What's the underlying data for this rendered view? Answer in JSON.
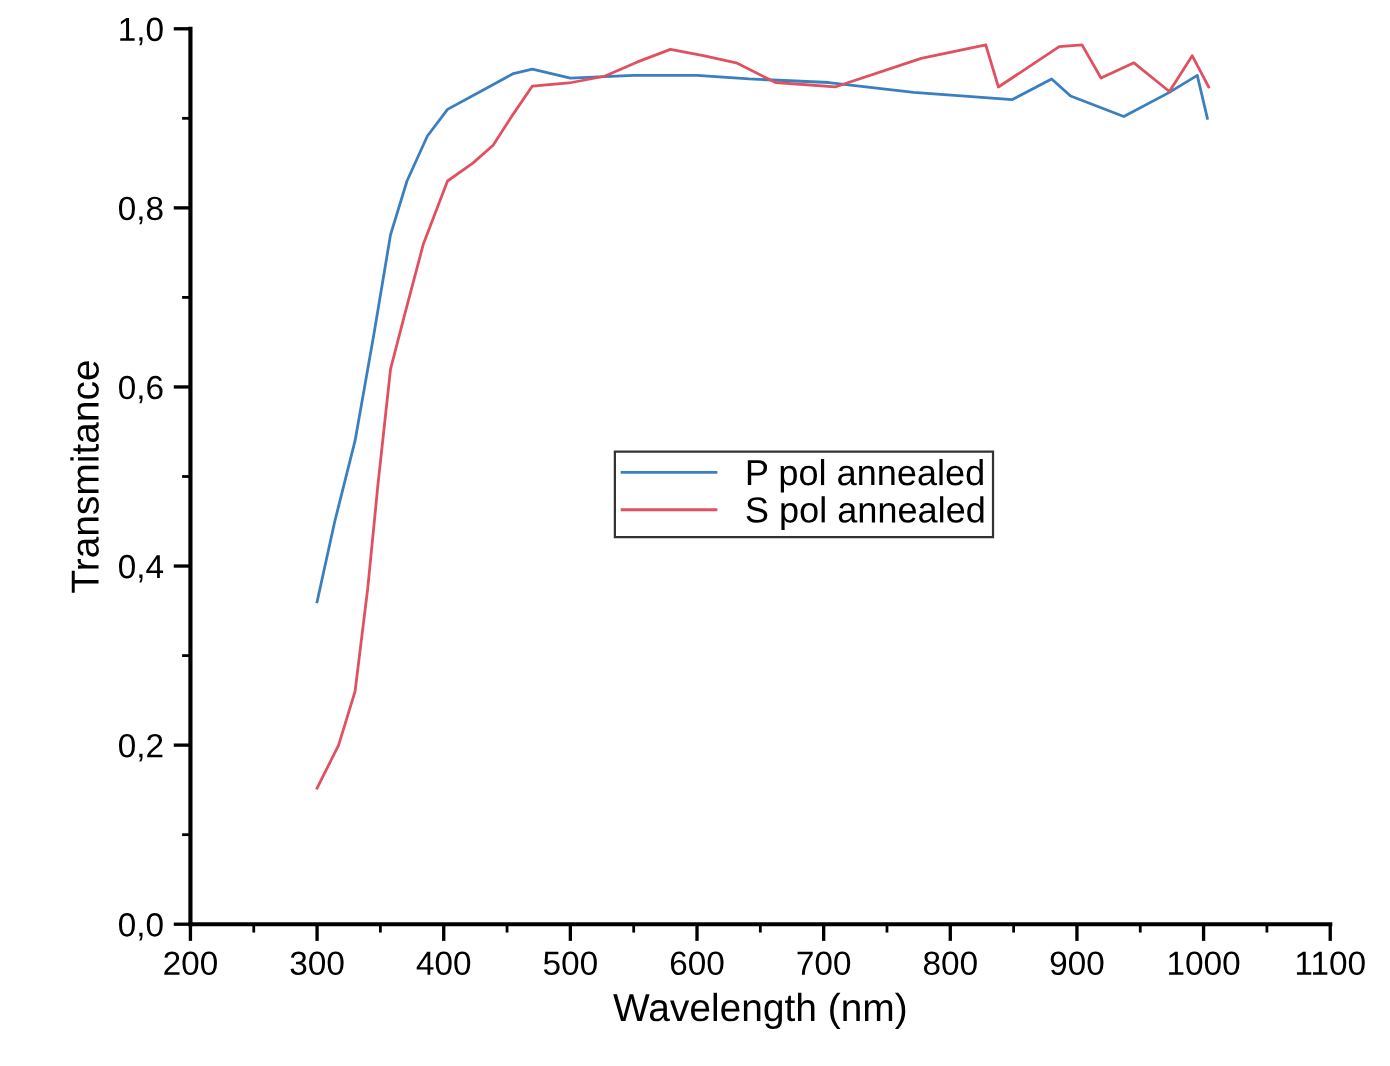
{
  "chart_data": {
    "type": "line",
    "xlabel": "Wavelength (nm)",
    "ylabel": "Transmitance",
    "xlim": [
      200,
      1100
    ],
    "xticks": [
      200,
      300,
      400,
      500,
      600,
      700,
      800,
      900,
      1000,
      1100
    ],
    "ylim": [
      0,
      1.0
    ],
    "yticks": [
      {
        "value": 0,
        "label": "0,0"
      },
      {
        "value": 0.2,
        "label": "0,2"
      },
      {
        "value": 0.4,
        "label": "0,4"
      },
      {
        "value": 0.6,
        "label": "0,6"
      },
      {
        "value": 0.8,
        "label": "0,8"
      },
      {
        "value": 1.0,
        "label": "1,0"
      }
    ],
    "grid": false,
    "legend": "right",
    "marker": "none",
    "line_style": "solid",
    "series": [
      {
        "name": "P pol annealed",
        "color": "#3a7fc0",
        "x": [
          300,
          314,
          330,
          345,
          358,
          371,
          387,
          403,
          429,
          455,
          470,
          500,
          550,
          600,
          641,
          704,
          771,
          849,
          880,
          895,
          937,
          973,
          995,
          1003
        ],
        "values": [
          0.36,
          0.45,
          0.54,
          0.66,
          0.77,
          0.83,
          0.88,
          0.91,
          0.93,
          0.95,
          0.955,
          0.945,
          0.948,
          0.948,
          0.944,
          0.94,
          0.929,
          0.921,
          0.944,
          0.925,
          0.902,
          0.929,
          0.948,
          0.9
        ]
      },
      {
        "name": "S pol annealed",
        "color": "#e0505f",
        "x": [
          300,
          317,
          330,
          340,
          348,
          358,
          369,
          384,
          403,
          423,
          439,
          455,
          470,
          501,
          527,
          553,
          579,
          605,
          631,
          662,
          709,
          777,
          828,
          838,
          886,
          904,
          919,
          945,
          973,
          991,
          1004
        ],
        "values": [
          0.152,
          0.2,
          0.26,
          0.375,
          0.49,
          0.62,
          0.68,
          0.76,
          0.83,
          0.85,
          0.87,
          0.905,
          0.936,
          0.94,
          0.947,
          0.963,
          0.977,
          0.97,
          0.962,
          0.94,
          0.935,
          0.967,
          0.982,
          0.935,
          0.98,
          0.982,
          0.945,
          0.962,
          0.93,
          0.97,
          0.935
        ]
      }
    ]
  }
}
